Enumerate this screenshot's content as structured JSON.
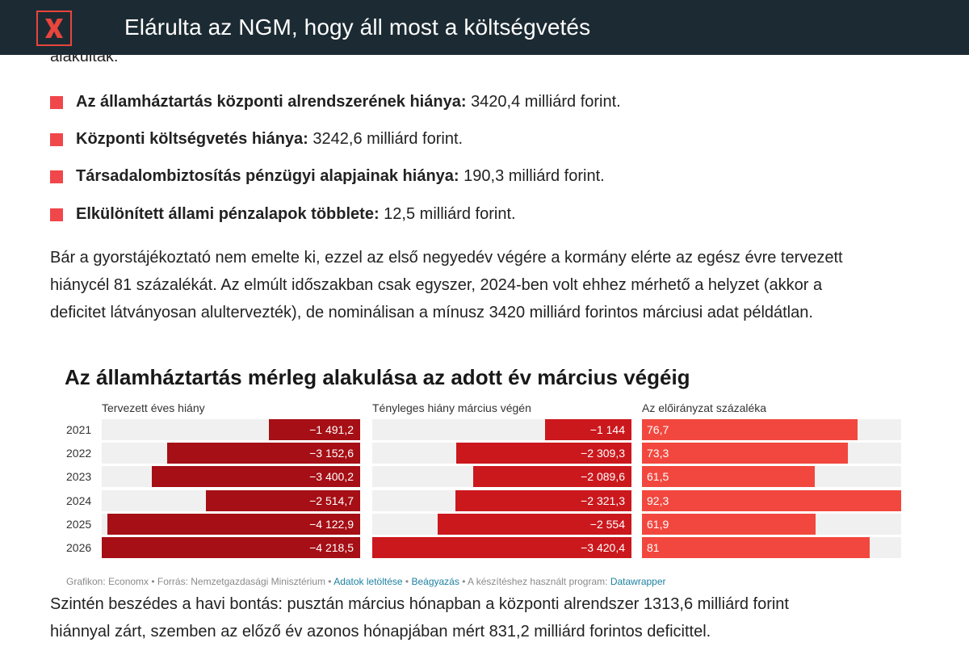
{
  "header": {
    "logo_letter": "X",
    "title": "Elárulta az NGM, hogy áll most a költségvetés"
  },
  "article": {
    "cut_text": "alakultak:",
    "bullets": [
      {
        "bold": "Az államháztartás központi alrendszerének hiánya:",
        "value": "3420,4 milliárd forint."
      },
      {
        "bold": "Központi költségvetés hiánya:",
        "value": "3242,6 milliárd forint."
      },
      {
        "bold": "Társadalombiztosítás pénzügyi alapjainak hiánya:",
        "value": "190,3 milliárd forint."
      },
      {
        "bold": "Elkülönített állami pénzalapok többlete:",
        "value": "12,5 milliárd forint."
      }
    ],
    "paragraph1_lines": [
      "Bár a gyorstájékoztató nem emelte ki, ezzel az első negyedév végére a kormány elérte az egész évre tervezett",
      "hiánycél 81 százalékát. Az elmúlt időszakban csak egyszer, 2024-ben volt ehhez mérhető a helyzet (akkor a",
      "deficitet látványosan alultervezték), de nominálisan a mínusz 3420 milliárd forintos márciusi adat példátlan."
    ],
    "paragraph2_lines": [
      "Szintén beszédes a havi bontás: pusztán március hónapban a központi alrendszer 1313,6 milliárd forint",
      "hiánnyal zárt, szemben az előző év azonos hónapjában mért 831,2 milliárd forintos deficittel."
    ]
  },
  "chart_data": {
    "type": "bar",
    "title": "Az államháztartás mérleg alakulása az adott év március végéig",
    "categories": [
      "2021",
      "2022",
      "2023",
      "2024",
      "2025",
      "2026"
    ],
    "series": [
      {
        "name": "Tervezett éves hiány",
        "values": [
          -1491.2,
          -3152.6,
          -3400.2,
          -2514.7,
          -4122.9,
          -4218.5
        ],
        "labels": [
          "−1 491,2",
          "−3 152,6",
          "−3 400,2",
          "−2 514,7",
          "−4 122,9",
          "−4 218,5"
        ],
        "color": "#a50f15",
        "max": 4218.5
      },
      {
        "name": "Tényleges hiány március végén",
        "values": [
          -1144,
          -2309.3,
          -2089.6,
          -2321.3,
          -2554,
          -3420.4
        ],
        "labels": [
          "−1 144",
          "−2 309,3",
          "−2 089,6",
          "−2 321,3",
          "−2 554",
          "−3 420,4"
        ],
        "color": "#cb181d",
        "max": 3420.4
      },
      {
        "name": "Az előirányzat százaléka",
        "values": [
          76.7,
          73.3,
          61.5,
          92.3,
          61.9,
          81
        ],
        "labels": [
          "76,7",
          "73,3",
          "61,5",
          "92,3",
          "61,9",
          "81"
        ],
        "color": "#f2473e",
        "max": 92.3
      }
    ],
    "footer": {
      "prefix": "Grafikon: Economx • Forrás: Nemzetgazdasági Minisztérium •",
      "link1": "Adatok letöltése",
      "sep": "•",
      "link2": "Beágyazás",
      "mid": "• A készítéshez használt program:",
      "link3": "Datawrapper"
    }
  }
}
